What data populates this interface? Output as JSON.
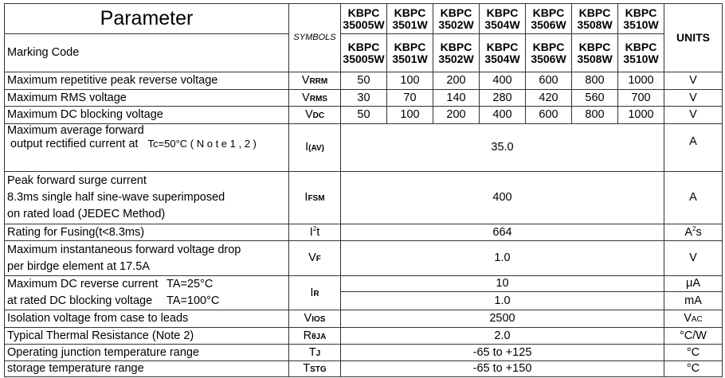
{
  "header": {
    "parameter": "Parameter",
    "symbols": "SYMBOLS",
    "marking_code": "Marking Code",
    "units": "UNITS",
    "models": [
      [
        "KBPC",
        "35005W"
      ],
      [
        "KBPC",
        "3501W"
      ],
      [
        "KBPC",
        "3502W"
      ],
      [
        "KBPC",
        "3504W"
      ],
      [
        "KBPC",
        "3506W"
      ],
      [
        "KBPC",
        "3508W"
      ],
      [
        "KBPC",
        "3510W"
      ]
    ],
    "markings": [
      [
        "KBPC",
        "35005W"
      ],
      [
        "KBPC",
        "3501W"
      ],
      [
        "KBPC",
        "3502W"
      ],
      [
        "KBPC",
        "3504W"
      ],
      [
        "KBPC",
        "3506W"
      ],
      [
        "KBPC",
        "3508W"
      ],
      [
        "KBPC",
        "3510W"
      ]
    ]
  },
  "rows": {
    "vrrm": {
      "param": "Maximum repetitive peak reverse voltage",
      "sym": "V",
      "sub": "RRM",
      "values": [
        "50",
        "100",
        "200",
        "400",
        "600",
        "800",
        "1000"
      ],
      "unit": "V"
    },
    "vrms": {
      "param": "Maximum RMS voltage",
      "sym": "V",
      "sub": "RMS",
      "values": [
        "30",
        "70",
        "140",
        "280",
        "420",
        "560",
        "700"
      ],
      "unit": "V"
    },
    "vdc": {
      "param": "Maximum DC blocking voltage",
      "sym": "V",
      "sub": "DC",
      "values": [
        "50",
        "100",
        "200",
        "400",
        "600",
        "800",
        "1000"
      ],
      "unit": "V"
    },
    "iav": {
      "param1": "Maximum average forward",
      "param2": "output rectified current at",
      "cond": "Tc=50°C ( N o t e  1 , 2 )",
      "sym": "I",
      "sub": "(AV)",
      "value": "35.0",
      "unit": "A"
    },
    "ifsm": {
      "param1": "Peak forward surge current",
      "param2": "8.3ms single half sine-wave superimposed",
      "param3": "on rated load (JEDEC Method)",
      "sym": "I",
      "sub": "FSM",
      "value": "400",
      "unit": "A"
    },
    "i2t": {
      "param": "Rating for Fusing(t<8.3ms)",
      "sym": "I",
      "sup": "2",
      "sym2": "t",
      "value": "664",
      "unit": "A",
      "unit_sup": "2",
      "unit2": "s"
    },
    "vf": {
      "param1": "Maximum instantaneous forward voltage drop",
      "param2": "per birdge element at 17.5A",
      "sym": "V",
      "sub": "F",
      "value": "1.0",
      "unit": "V"
    },
    "ir": {
      "param1": "Maximum DC reverse current",
      "cond1": "TA=25°C",
      "param2": "at rated DC blocking voltage",
      "cond2": "TA=100°C",
      "sym": "I",
      "sub": "R",
      "value1": "10",
      "unit1": "μA",
      "value2": "1.0",
      "unit2": "mA"
    },
    "vios": {
      "param": "Isolation voltage from case to leads",
      "sym": "V",
      "sub": "IOS",
      "value": "2500",
      "unit": "V",
      "unit_sub": "AC"
    },
    "rth": {
      "param": "Typical Thermal Resistance (Note 2)",
      "sym": "R",
      "sub": "θJA",
      "value": "2.0",
      "unit": "°C/W"
    },
    "tj": {
      "param": "Operating junction temperature range",
      "sym": "T",
      "sub": "J",
      "value": "-65 to +125",
      "unit": "°C"
    },
    "tstg": {
      "param": "storage temperature range",
      "sym": "T",
      "sub": "STG",
      "value": "-65 to +150",
      "unit": "°C"
    }
  }
}
